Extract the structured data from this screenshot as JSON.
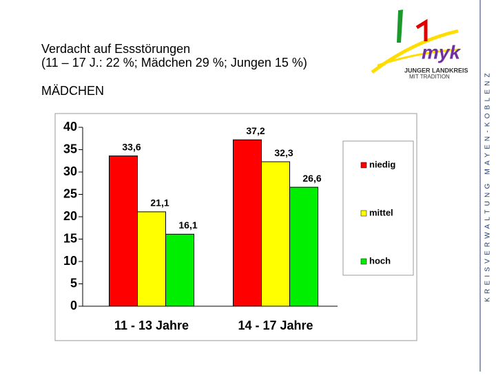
{
  "header": {
    "title_line1": "Verdacht auf Essstörungen",
    "title_line2": "(11 – 17 J.: 22 %; Mädchen 29 %; Jungen 15 %)",
    "subtitle": "MÄDCHEN"
  },
  "logo": {
    "word": "myk",
    "line1": "JUNGER LANDKREIS",
    "line2": "MIT TRADITION"
  },
  "side_text": "KREISVERWALTUNG MAYEN-KOBLENZ",
  "chart_data": {
    "type": "bar",
    "categories": [
      "11 - 13 Jahre",
      "14 - 17 Jahre"
    ],
    "series": [
      {
        "name": "niedig",
        "color": "#ff0000",
        "values": [
          33.6,
          37.2
        ],
        "value_labels": [
          "33,6",
          "37,2"
        ]
      },
      {
        "name": "mittel",
        "color": "#ffff00",
        "values": [
          21.1,
          32.3
        ],
        "value_labels": [
          "21,1",
          "32,3"
        ]
      },
      {
        "name": "hoch",
        "color": "#00ee00",
        "values": [
          16.1,
          26.6
        ],
        "value_labels": [
          "16,1",
          "26,6"
        ]
      }
    ],
    "ylim": [
      0,
      40
    ],
    "yticks": [
      0,
      5,
      10,
      15,
      20,
      25,
      30,
      35,
      40
    ],
    "legend": "right"
  }
}
